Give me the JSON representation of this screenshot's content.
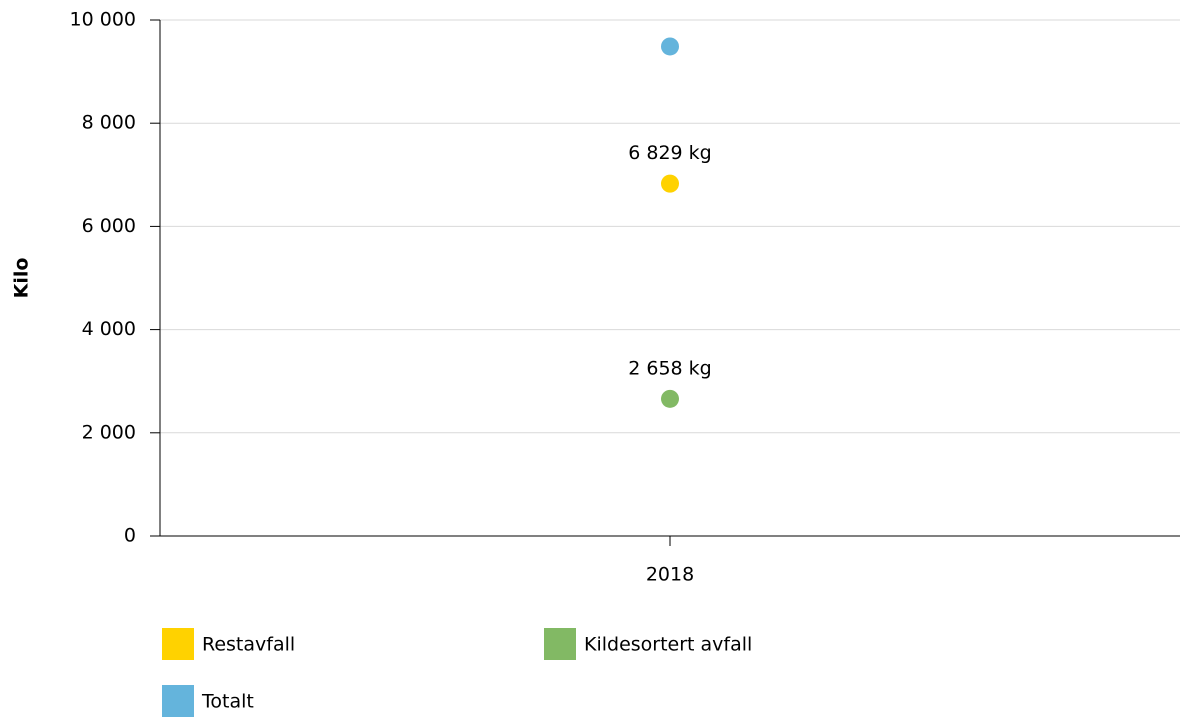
{
  "chart_data": {
    "type": "line",
    "y_label": "Kilo",
    "categories": [
      "2018"
    ],
    "series": [
      {
        "name": "Restavfall",
        "color": "#ffd200",
        "values": [
          6829
        ],
        "value_labels": [
          "6 829 kg"
        ]
      },
      {
        "name": "Kildesortert avfall",
        "color": "#82b964",
        "values": [
          2658
        ],
        "value_labels": [
          "2 658 kg"
        ]
      },
      {
        "name": "Totalt",
        "color": "#64b4dc",
        "values": [
          9487
        ]
      }
    ],
    "ylim": [
      0,
      10000
    ],
    "yticks": [
      0,
      {
        "value": 2000,
        "label": "2 000"
      },
      {
        "value": 4000,
        "label": "4 000"
      },
      {
        "value": 6000,
        "label": "6 000"
      },
      {
        "value": 8000,
        "label": "8 000"
      },
      {
        "value": 10000,
        "label": "10 000"
      }
    ],
    "grid": true
  }
}
